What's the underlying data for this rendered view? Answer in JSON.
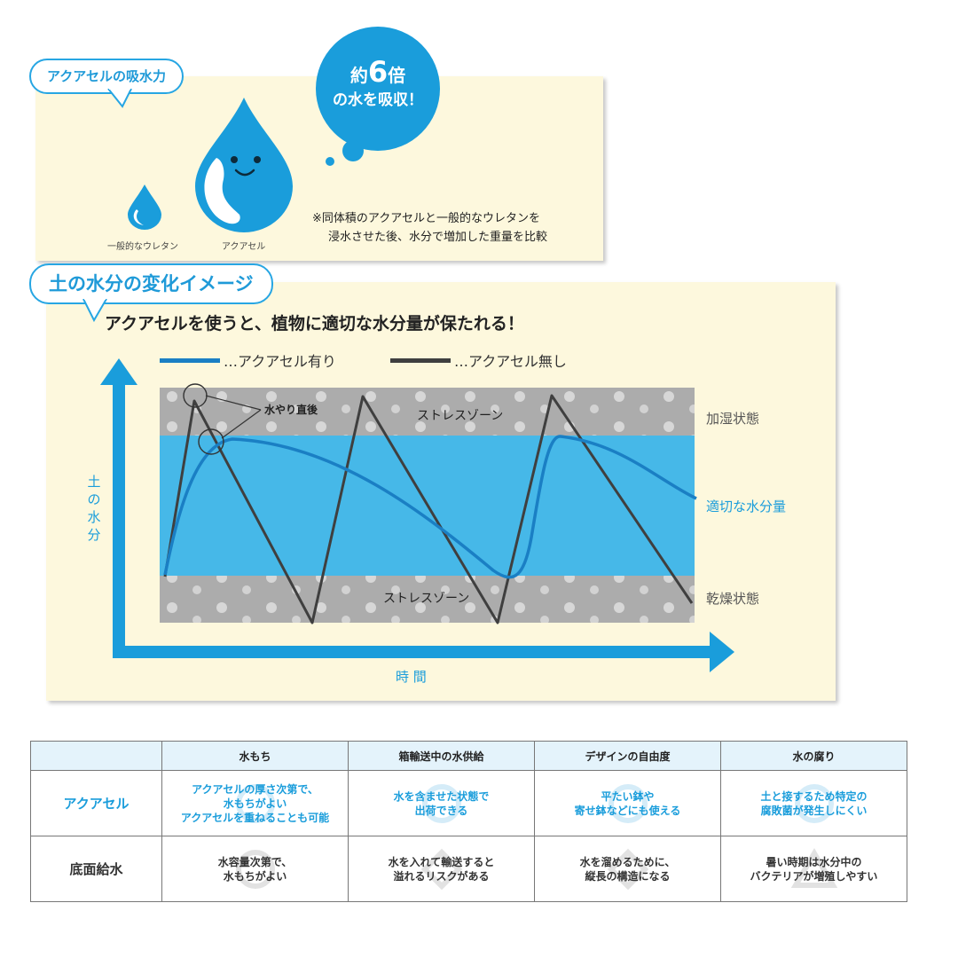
{
  "absorb": {
    "title": "アクアセルの吸水力",
    "bubble_line1_prefix": "約",
    "bubble_number": "6",
    "bubble_line1_suffix": "倍",
    "bubble_line2": "の水を吸収！",
    "small_drop_label": "一般的なウレタン",
    "big_drop_label": "アクアセル",
    "note_line1": "※同体積のアクアセルと一般的なウレタンを",
    "note_line2": "浸水させた後、水分で増加した重量を比較"
  },
  "moisture": {
    "title": "土の水分の変化イメージ",
    "headline": "アクアセルを使うと、植物に適切な水分量が保たれる！",
    "legend_with": "…アクアセル有り",
    "legend_without": "…アクアセル無し",
    "y_axis_label": "土の水分",
    "x_axis_label": "時 間",
    "zone_top_label": "ストレスゾーン",
    "zone_bottom_label": "ストレスゾーン",
    "state_humid": "加湿状態",
    "state_proper": "適切な水分量",
    "state_dry": "乾燥状態",
    "watering_label": "水やり直後"
  },
  "colors": {
    "accent_blue": "#1f9ad8",
    "with_line": "#1a7fc4",
    "without_line": "#3f3f3f",
    "proper_zone": "#46b8e8",
    "stress_zone": "#acacac",
    "panel_bg": "#fdf8dd"
  },
  "table": {
    "headers": [
      "",
      "水もち",
      "箱輸送中の水供給",
      "デザインの自由度",
      "水の腐り"
    ],
    "rows": [
      {
        "label": "アクアセル",
        "cells": [
          "アクアセルの厚さ次第で、\n水もちがよい\nアクアセルを重ねることも可能",
          "水を含ませた状態で\n出荷できる",
          "平たい鉢や\n寄せ鉢などにも使える",
          "土と接するため特定の\n腐敗菌が発生しにくい"
        ],
        "marks": [
          "circle",
          "circle",
          "circle",
          "circle"
        ]
      },
      {
        "label": "底面給水",
        "cells": [
          "水容量次第で、\n水もちがよい",
          "水を入れて輸送すると\n溢れるリスクがある",
          "水を溜めるために、\n縦長の構造になる",
          "暑い時期は水分中の\nバクテリアが増殖しやすい"
        ],
        "marks": [
          "circle",
          "diamond",
          "diamond",
          "triangle"
        ]
      }
    ]
  }
}
